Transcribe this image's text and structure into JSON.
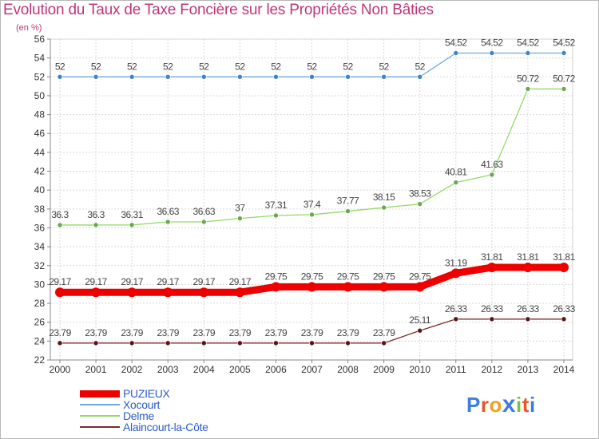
{
  "header": {
    "title": "Evolution du Taux de Taxe Foncière sur les Propriétés Non Bâties",
    "subtitle": "(en %)"
  },
  "brand": {
    "name": "Proxiti",
    "colors": [
      "#3b7de0",
      "#e8542a",
      "#f0a020",
      "#3b7de0",
      "#7cc142",
      "#e8542a",
      "#3b7de0"
    ]
  },
  "chart_data": {
    "type": "line",
    "title": "Evolution du Taux de Taxe Foncière sur les Propriétés Non Bâties",
    "ylabel": "(en %)",
    "xlabel": "",
    "x": [
      "2000",
      "2001",
      "2002",
      "2003",
      "2004",
      "2005",
      "2006",
      "2007",
      "2008",
      "2009",
      "2010",
      "2011",
      "2012",
      "2013",
      "2014"
    ],
    "ylim": [
      22,
      56
    ],
    "yticks": [
      "22",
      "24",
      "26",
      "28",
      "30",
      "32",
      "34",
      "36",
      "38",
      "40",
      "42",
      "44",
      "46",
      "48",
      "50",
      "52",
      "54",
      "56"
    ],
    "grid": true,
    "legend_position": "bottom-left",
    "series": [
      {
        "name": "PUZIEUX",
        "color": "#ee0000",
        "marker_color": "#cc0000",
        "values": [
          29.17,
          29.17,
          29.17,
          29.17,
          29.17,
          29.17,
          29.75,
          29.75,
          29.75,
          29.75,
          29.75,
          31.19,
          31.81,
          31.81,
          31.81
        ],
        "labels": [
          "29.17",
          "29.17",
          "29.17",
          "29.17",
          "29.17",
          "29.17",
          "29.75",
          "29.75",
          "29.75",
          "29.75",
          "29.75",
          "31.19",
          "31.81",
          "31.81",
          "31.81"
        ]
      },
      {
        "name": "Xocourt",
        "color": "#6fa8dc",
        "marker_color": "#3d85c6",
        "values": [
          52,
          52,
          52,
          52,
          52,
          52,
          52,
          52,
          52,
          52,
          52,
          54.52,
          54.52,
          54.52,
          54.52
        ],
        "labels": [
          "52",
          "52",
          "52",
          "52",
          "52",
          "52",
          "52",
          "52",
          "52",
          "52",
          "52",
          "54.52",
          "54.52",
          "54.52",
          "54.52"
        ]
      },
      {
        "name": "Delme",
        "color": "#93d96a",
        "marker_color": "#6aa84f",
        "values": [
          36.3,
          36.3,
          36.31,
          36.63,
          36.63,
          37,
          37.31,
          37.4,
          37.77,
          38.15,
          38.53,
          40.81,
          41.63,
          50.72,
          50.72
        ],
        "labels": [
          "36.3",
          "36.3",
          "36.31",
          "36.63",
          "36.63",
          "37",
          "37.31",
          "37.4",
          "37.77",
          "38.15",
          "38.53",
          "40.81",
          "41.63",
          "50.72",
          "50.72"
        ]
      },
      {
        "name": "Alaincourt-la-Côte",
        "color": "#7a2b2b",
        "marker_color": "#5a1414",
        "values": [
          23.79,
          23.79,
          23.79,
          23.79,
          23.79,
          23.79,
          23.79,
          23.79,
          23.79,
          23.79,
          25.11,
          26.33,
          26.33,
          26.33,
          26.33
        ],
        "labels": [
          "23.79",
          "23.79",
          "23.79",
          "23.79",
          "23.79",
          "23.79",
          "23.79",
          "23.79",
          "23.79",
          "23.79",
          "25.11",
          "26.33",
          "26.33",
          "26.33",
          "26.33"
        ]
      }
    ]
  }
}
